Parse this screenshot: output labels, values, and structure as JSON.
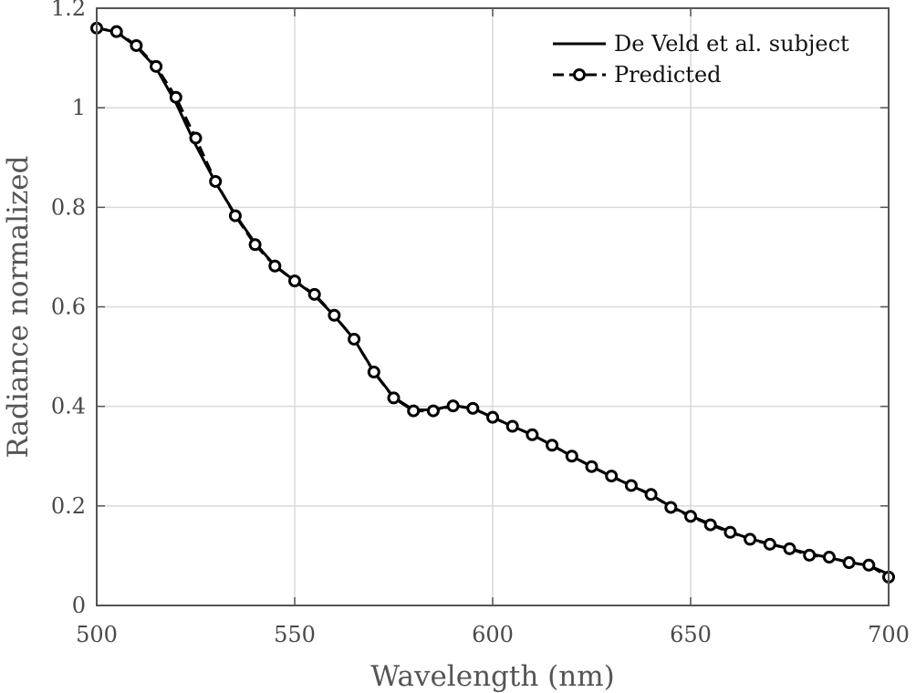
{
  "chart_data": {
    "type": "line",
    "title": "",
    "xlabel": "Wavelength (nm)",
    "ylabel": "Radiance normalized",
    "xlim": [
      500,
      700
    ],
    "ylim": [
      0,
      1.2
    ],
    "x_ticks": [
      500,
      550,
      600,
      650,
      700
    ],
    "y_ticks": [
      0,
      0.2,
      0.4,
      0.6,
      0.8,
      1,
      1.2
    ],
    "x_tick_labels": [
      "500",
      "550",
      "600",
      "650",
      "700"
    ],
    "y_tick_labels": [
      "0",
      "0.2",
      "0.4",
      "0.6",
      "0.8",
      "1",
      "1.2"
    ],
    "grid": true,
    "legend_position": "top-right",
    "x": [
      500,
      505,
      510,
      515,
      520,
      525,
      530,
      535,
      540,
      545,
      550,
      555,
      560,
      565,
      570,
      575,
      580,
      585,
      590,
      595,
      600,
      605,
      610,
      615,
      620,
      625,
      630,
      635,
      640,
      645,
      650,
      655,
      660,
      665,
      670,
      675,
      680,
      685,
      690,
      695,
      700
    ],
    "series": [
      {
        "name": "De Veld et al. subject",
        "style": "solid",
        "color": "#000000",
        "values": [
          1.16,
          1.152,
          1.123,
          1.08,
          1.01,
          0.925,
          0.85,
          0.785,
          0.728,
          0.683,
          0.652,
          0.623,
          0.582,
          0.535,
          0.47,
          0.418,
          0.393,
          0.393,
          0.402,
          0.396,
          0.378,
          0.36,
          0.343,
          0.322,
          0.3,
          0.279,
          0.259,
          0.241,
          0.222,
          0.199,
          0.18,
          0.164,
          0.148,
          0.134,
          0.124,
          0.114,
          0.104,
          0.096,
          0.087,
          0.08,
          0.063
        ]
      },
      {
        "name": "Predicted",
        "style": "dashed-circle",
        "color": "#000000",
        "values": [
          1.16,
          1.153,
          1.125,
          1.083,
          1.021,
          0.939,
          0.852,
          0.783,
          0.725,
          0.682,
          0.652,
          0.625,
          0.583,
          0.535,
          0.469,
          0.417,
          0.391,
          0.391,
          0.401,
          0.396,
          0.378,
          0.36,
          0.343,
          0.322,
          0.3,
          0.279,
          0.26,
          0.241,
          0.223,
          0.197,
          0.179,
          0.162,
          0.147,
          0.133,
          0.123,
          0.114,
          0.101,
          0.097,
          0.086,
          0.081,
          0.057
        ]
      }
    ]
  }
}
